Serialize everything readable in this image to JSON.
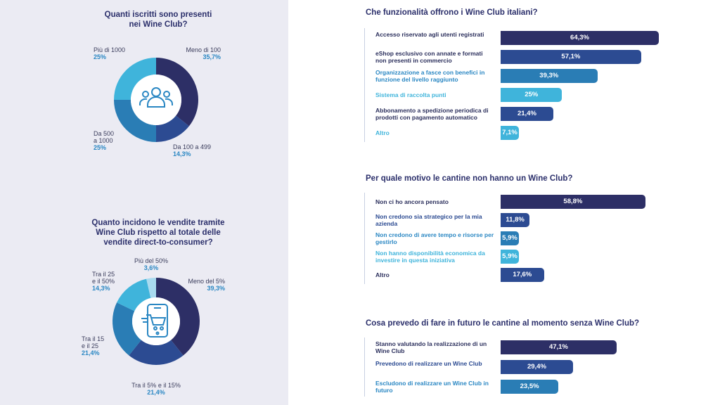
{
  "palette": {
    "dark_navy": "#2d2f66",
    "navy": "#2c4b92",
    "mid_blue": "#2a7db5",
    "sky": "#3fb4db",
    "pale": "#a8daef",
    "label_blue": "#2a87c3"
  },
  "chart_data": [
    {
      "type": "pie",
      "id": "iscritti",
      "title": "Quanti iscritti sono presenti\nnei Wine Club?",
      "icon": "users-icon",
      "slices": [
        {
          "label": "Meno di 100",
          "value": 35.7,
          "display": "35,7%",
          "color": "#2d2f66"
        },
        {
          "label": "Da 100 a 499",
          "value": 14.3,
          "display": "14,3%",
          "color": "#2c4b92"
        },
        {
          "label": "Da 500\na 1000",
          "value": 25,
          "display": "25%",
          "color": "#2a7db5"
        },
        {
          "label": "Più di 1000",
          "value": 25,
          "display": "25%",
          "color": "#3fb4db"
        }
      ]
    },
    {
      "type": "pie",
      "id": "vendite",
      "title": "Quanto incidono le vendite tramite\nWine Club rispetto al totale delle\nvendite direct-to-consumer?",
      "icon": "mobile-cart-icon",
      "slices": [
        {
          "label": "Meno del 5%",
          "value": 39.3,
          "display": "39,3%",
          "color": "#2d2f66"
        },
        {
          "label": "Tra il 5% e il 15%",
          "value": 21.4,
          "display": "21,4%",
          "color": "#2c4b92"
        },
        {
          "label": "Tra il 15\ne il 25",
          "value": 21.4,
          "display": "21,4%",
          "color": "#2a7db5"
        },
        {
          "label": "Tra il 25\ne il 50%",
          "value": 14.3,
          "display": "14,3%",
          "color": "#3fb4db"
        },
        {
          "label": "Più del 50%",
          "value": 3.6,
          "display": "3,6%",
          "color": "#a8daef"
        }
      ]
    },
    {
      "type": "bar",
      "id": "funzionalita",
      "title": "Che funzionalità offrono i Wine Club italiani?",
      "categories": [
        "Accesso riservato agli utenti registrati",
        "eShop esclusivo con annate e formati non presenti in commercio",
        "Organizzazione a fasce con benefici in funzione del livello raggiunto",
        "Sistema di raccolta punti",
        "Abbonamento a spedizione periodica di prodotti con pagamento automatico",
        "Altro"
      ],
      "values": [
        64.3,
        57.1,
        39.3,
        25,
        21.4,
        7.1
      ],
      "labels": [
        "64,3%",
        "57,1%",
        "39,3%",
        "25%",
        "21,4%",
        "7,1%"
      ],
      "colors": [
        "#2d2f66",
        "#2c4b92",
        "#2a7db5",
        "#3fb4db",
        "#2c4b92",
        "#3fb4db"
      ],
      "label_colors": [
        "#2b2f5c",
        "#2b2f5c",
        "#2a87c3",
        "#3fb4db",
        "#2b2f5c",
        "#3fb4db"
      ],
      "xlim": [
        0,
        64.3
      ]
    },
    {
      "type": "bar",
      "id": "motivo",
      "title": "Per quale motivo le cantine non hanno un Wine Club?",
      "categories": [
        "Non ci ho ancora pensato",
        "Non credono sia strategico per la mia azienda",
        "Non credono di avere tempo e risorse per gestirlo",
        "Non hanno disponibilità economica da investire in questa iniziativa",
        "Altro"
      ],
      "values": [
        58.8,
        11.8,
        5.9,
        5.9,
        17.6
      ],
      "labels": [
        "58,8%",
        "11,8%",
        "5,9%",
        "5,9%",
        "17,6%"
      ],
      "colors": [
        "#2d2f66",
        "#2c4b92",
        "#2a7db5",
        "#3fb4db",
        "#2c4b92"
      ],
      "label_colors": [
        "#2b2f5c",
        "#2c4b92",
        "#2a87c3",
        "#3fb4db",
        "#2b2f5c"
      ],
      "xlim": [
        0,
        64.3
      ]
    },
    {
      "type": "bar",
      "id": "futuro",
      "title": "Cosa prevedo di fare in futuro le cantine al momento senza Wine Club?",
      "categories": [
        "Stanno valutando la realizzazione di un Wine Club",
        "Prevedono di realizzare un Wine Club",
        "Escludono di realizzare un Wine Club in futuro"
      ],
      "values": [
        47.1,
        29.4,
        23.5
      ],
      "labels": [
        "47,1%",
        "29,4%",
        "23,5%"
      ],
      "colors": [
        "#2d2f66",
        "#2c4b92",
        "#2a7db5"
      ],
      "label_colors": [
        "#2b2f5c",
        "#2c4b92",
        "#2a87c3"
      ],
      "xlim": [
        0,
        64.3
      ]
    }
  ]
}
